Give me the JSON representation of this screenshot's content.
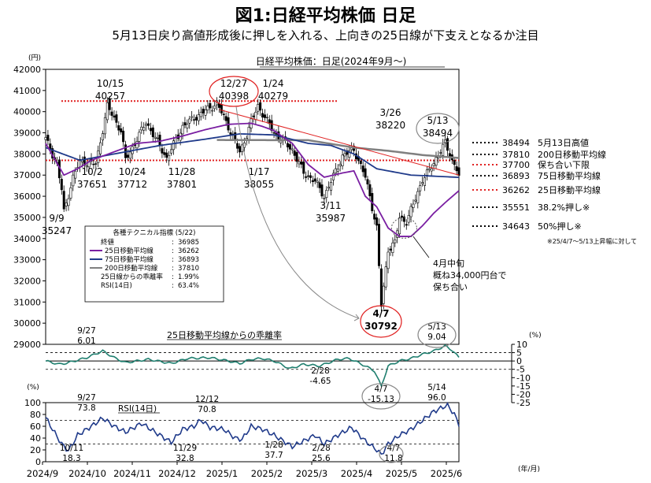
{
  "title": "図1:日経平均株価 日足",
  "subtitle": "5月13日戻り高値形成後に押しを入れる、上向きの25日線が下支えとなるか注目",
  "chart_data": [
    {
      "type": "candlestick",
      "title": "日経平均株価：日足(2024年9月～)",
      "ylabel": "(円)",
      "ylim": [
        29000,
        42000
      ],
      "yticks": [
        "42000",
        "41000",
        "40000",
        "39000",
        "38000",
        "37000",
        "36000",
        "35000",
        "34000",
        "33000",
        "32000",
        "31000",
        "30000",
        "29000"
      ],
      "xticks": [
        "2024/9",
        "2024/10",
        "2024/11",
        "2024/12",
        "2025/1",
        "2025/2",
        "2025/3",
        "2025/4",
        "2025/5",
        "2025/6"
      ],
      "xlabel": "(年/月)",
      "anchors": [
        [
          0,
          38700
        ],
        [
          5,
          37500
        ],
        [
          7,
          36300
        ],
        [
          8,
          35247
        ],
        [
          12,
          36900
        ],
        [
          15,
          37651
        ],
        [
          22,
          37500
        ],
        [
          27,
          40257
        ],
        [
          33,
          39100
        ],
        [
          35,
          37712
        ],
        [
          44,
          39500
        ],
        [
          53,
          37801
        ],
        [
          60,
          39300
        ],
        [
          65,
          39700
        ],
        [
          75,
          40398
        ],
        [
          80,
          39300
        ],
        [
          85,
          38055
        ],
        [
          90,
          39500
        ],
        [
          93,
          40279
        ],
        [
          100,
          39000
        ],
        [
          108,
          38200
        ],
        [
          113,
          37100
        ],
        [
          118,
          36700
        ],
        [
          122,
          35987
        ],
        [
          130,
          37900
        ],
        [
          135,
          38220
        ],
        [
          140,
          36900
        ],
        [
          142,
          36000
        ],
        [
          145,
          34500
        ],
        [
          147,
          30792
        ],
        [
          150,
          33500
        ],
        [
          153,
          33800
        ],
        [
          155,
          35000
        ],
        [
          158,
          34800
        ],
        [
          161,
          35600
        ],
        [
          165,
          36800
        ],
        [
          168,
          37200
        ],
        [
          172,
          38000
        ],
        [
          175,
          38494
        ],
        [
          178,
          37700
        ],
        [
          180,
          37300
        ],
        [
          181,
          36985
        ]
      ],
      "ma25": [
        [
          0,
          38500
        ],
        [
          8,
          37000
        ],
        [
          14,
          37300
        ],
        [
          20,
          37700
        ],
        [
          30,
          38100
        ],
        [
          40,
          38500
        ],
        [
          50,
          38600
        ],
        [
          60,
          38850
        ],
        [
          70,
          39150
        ],
        [
          80,
          39400
        ],
        [
          90,
          39450
        ],
        [
          95,
          39300
        ],
        [
          100,
          39100
        ],
        [
          108,
          38500
        ],
        [
          115,
          37500
        ],
        [
          122,
          36900
        ],
        [
          130,
          37100
        ],
        [
          135,
          37200
        ],
        [
          140,
          36000
        ],
        [
          145,
          35500
        ],
        [
          150,
          34500
        ],
        [
          155,
          34100
        ],
        [
          160,
          34100
        ],
        [
          165,
          34600
        ],
        [
          170,
          35200
        ],
        [
          175,
          35700
        ],
        [
          181,
          36262
        ]
      ],
      "ma75": [
        [
          0,
          38300
        ],
        [
          15,
          37700
        ],
        [
          30,
          38000
        ],
        [
          50,
          38400
        ],
        [
          70,
          38700
        ],
        [
          85,
          38950
        ],
        [
          100,
          38900
        ],
        [
          115,
          38500
        ],
        [
          125,
          38400
        ],
        [
          135,
          38000
        ],
        [
          145,
          37300
        ],
        [
          160,
          37000
        ],
        [
          170,
          36950
        ],
        [
          181,
          36893
        ]
      ],
      "ma200": [
        [
          75,
          38660
        ],
        [
          115,
          38650
        ],
        [
          135,
          38300
        ],
        [
          150,
          38150
        ],
        [
          165,
          37950
        ],
        [
          181,
          37810
        ]
      ],
      "hlines": [
        {
          "y": 40500,
          "color": "#e02020"
        },
        {
          "y": 37700,
          "color": "#e02020"
        }
      ],
      "annotations": [
        {
          "date": "10/15",
          "value": "40257"
        },
        {
          "date": "10/2",
          "value": "37651"
        },
        {
          "date": "10/24",
          "value": "37712"
        },
        {
          "date": "11/28",
          "value": "37801"
        },
        {
          "date": "9/9",
          "value": "35247"
        },
        {
          "date": "12/27",
          "value": "40398"
        },
        {
          "date": "1/24",
          "value": "40279"
        },
        {
          "date": "1/17",
          "value": "38055"
        },
        {
          "date": "3/26",
          "value": "38220"
        },
        {
          "date": "3/11",
          "value": "35987"
        },
        {
          "date": "5/13",
          "value": "38494"
        },
        {
          "date": "4/7",
          "value": "30792"
        }
      ],
      "note_callout": [
        "4月中旬",
        "概ね34,000円台で",
        "保ち合い"
      ],
      "right_levels": [
        {
          "value": "38494",
          "label": "5月13日高値",
          "color": "#000000"
        },
        {
          "value": "37810",
          "label": "200日移動平均線",
          "color": "#000000"
        },
        {
          "value": "37700",
          "label": "保ち合い下限",
          "color": "#e02020"
        },
        {
          "value": "36893",
          "label": "75日移動平均線",
          "color": "#000000"
        },
        {
          "value": "36262",
          "label": "25日移動平均線",
          "color": "#e02020"
        },
        {
          "value": "35551",
          "label": "38.2%押し※",
          "color": "#000000"
        },
        {
          "value": "34643",
          "label": "50%押し※",
          "color": "#000000"
        }
      ],
      "footnote": "※25/4/7～5/13上昇幅に対して",
      "legend_box": {
        "title": "各種テクニカル指標 (5/22)",
        "rows": [
          {
            "label": "終値",
            "value": "36985"
          },
          {
            "label": "25日移動平均線",
            "value": "36262",
            "color": "#7a1fa2"
          },
          {
            "label": "75日移動平均線",
            "value": "36893",
            "color": "#1f3a8a"
          },
          {
            "label": "200日移動平均線",
            "value": "37810",
            "color": "#808080"
          },
          {
            "label": "25日線からの乖離率",
            "value": "1.99%"
          },
          {
            "label": "RSI(14日)",
            "value": "63.4%"
          }
        ]
      },
      "colors": {
        "up": "#ffffff",
        "down": "#000000",
        "ma25": "#7a1fa2",
        "ma75": "#1f3a8a",
        "ma200": "#808080",
        "accent": "#e02020"
      }
    },
    {
      "type": "line",
      "title": "25日移動平均線からの乖離率",
      "ylabel": "(%)",
      "ylim": [
        -25,
        10
      ],
      "yticks": [
        "10",
        "5",
        "0",
        "-5",
        "-10",
        "-15",
        "-20",
        "-25"
      ],
      "ref_lines": [
        5,
        -5
      ],
      "annotations": [
        {
          "date": "9/27",
          "value": "6.01"
        },
        {
          "date": "2/28",
          "value": "-4.65"
        },
        {
          "date": "4/7",
          "value": "-15.13"
        },
        {
          "date": "5/13",
          "value": "9.04"
        }
      ],
      "anchors": [
        [
          0,
          0
        ],
        [
          6,
          -2
        ],
        [
          10,
          -1
        ],
        [
          18,
          2
        ],
        [
          25,
          6.01
        ],
        [
          30,
          2
        ],
        [
          35,
          -1
        ],
        [
          45,
          1
        ],
        [
          55,
          -1.5
        ],
        [
          62,
          1.5
        ],
        [
          72,
          2
        ],
        [
          80,
          0
        ],
        [
          85,
          -1.5
        ],
        [
          90,
          1
        ],
        [
          95,
          1.5
        ],
        [
          100,
          0
        ],
        [
          107,
          -4.65
        ],
        [
          113,
          -2
        ],
        [
          120,
          -3
        ],
        [
          128,
          1
        ],
        [
          133,
          1.5
        ],
        [
          140,
          -3
        ],
        [
          144,
          -6
        ],
        [
          147,
          -15.13
        ],
        [
          150,
          -3
        ],
        [
          155,
          0
        ],
        [
          160,
          1.5
        ],
        [
          165,
          4
        ],
        [
          170,
          6
        ],
        [
          175,
          9.04
        ],
        [
          178,
          6.5
        ],
        [
          181,
          2
        ]
      ],
      "color": "#1f7f6f"
    },
    {
      "type": "line",
      "title": "RSI(14日)",
      "ylabel": "(%)",
      "ylim": [
        0,
        100
      ],
      "yticks": [
        "100",
        "80",
        "60",
        "40",
        "20",
        "0"
      ],
      "ref_lines": [
        70,
        30
      ],
      "annotations": [
        {
          "date": "9/27",
          "value": "73.8"
        },
        {
          "date": "10/11",
          "value": "18.3"
        },
        {
          "date": "11/29",
          "value": "32.8"
        },
        {
          "date": "12/12",
          "value": "70.8"
        },
        {
          "date": "1/28",
          "value": "37.7"
        },
        {
          "date": "2/28",
          "value": "25.6"
        },
        {
          "date": "4/7",
          "value": "11.8"
        },
        {
          "date": "5/14",
          "value": "96.0"
        }
      ],
      "anchors": [
        [
          0,
          75
        ],
        [
          3,
          55
        ],
        [
          7,
          30
        ],
        [
          10,
          18.3
        ],
        [
          14,
          45
        ],
        [
          20,
          60
        ],
        [
          25,
          73.8
        ],
        [
          30,
          60
        ],
        [
          35,
          50
        ],
        [
          42,
          65
        ],
        [
          48,
          50
        ],
        [
          55,
          32.8
        ],
        [
          60,
          55
        ],
        [
          65,
          60
        ],
        [
          68,
          70.8
        ],
        [
          72,
          58
        ],
        [
          78,
          55
        ],
        [
          83,
          40
        ],
        [
          86,
          37.7
        ],
        [
          90,
          60
        ],
        [
          95,
          55
        ],
        [
          100,
          45
        ],
        [
          108,
          25.6
        ],
        [
          113,
          35
        ],
        [
          118,
          45
        ],
        [
          122,
          30
        ],
        [
          128,
          45
        ],
        [
          134,
          58
        ],
        [
          140,
          35
        ],
        [
          145,
          20
        ],
        [
          147,
          11.8
        ],
        [
          150,
          30
        ],
        [
          155,
          45
        ],
        [
          160,
          55
        ],
        [
          165,
          70
        ],
        [
          170,
          85
        ],
        [
          176,
          96.0
        ],
        [
          179,
          80
        ],
        [
          181,
          63.4
        ]
      ],
      "color": "#1f3a8a"
    }
  ]
}
